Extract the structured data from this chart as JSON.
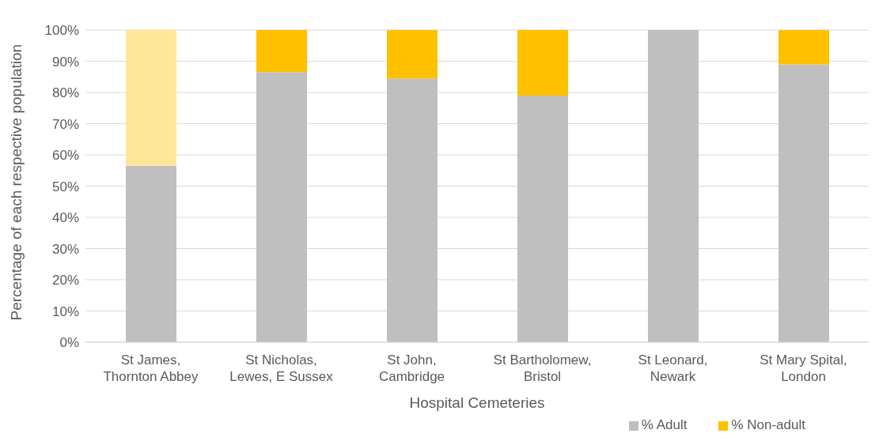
{
  "chart_data": {
    "type": "bar",
    "stacked": true,
    "xlabel": "Hospital Cemeteries",
    "ylabel": "Percentage of each respective population",
    "categories": [
      "St James, Thornton Abbey",
      "St Nicholas, Lewes, E Sussex",
      "St John, Cambridge",
      "St Bartholomew, Bristol",
      "St Leonard, Newark",
      "St Mary Spital, London"
    ],
    "series": [
      {
        "name": "% Adult",
        "color": "#bfbfbf",
        "values": [
          56.5,
          86.5,
          84.5,
          79,
          100,
          89
        ]
      },
      {
        "name": "% Non-adult",
        "color": "#ffc000",
        "colors": [
          "#ffe699",
          "#ffc000",
          "#ffc000",
          "#ffc000",
          "#ffc000",
          "#ffc000"
        ],
        "values": [
          43.5,
          13.5,
          15.5,
          21,
          0,
          11
        ]
      }
    ],
    "ylim": [
      0,
      100
    ],
    "yticks": [
      {
        "value": 0,
        "label": "0%"
      },
      {
        "value": 10,
        "label": "10%"
      },
      {
        "value": 20,
        "label": "20%"
      },
      {
        "value": 30,
        "label": "30%"
      },
      {
        "value": 40,
        "label": "40%"
      },
      {
        "value": 50,
        "label": "50%"
      },
      {
        "value": 60,
        "label": "60%"
      },
      {
        "value": 70,
        "label": "70%"
      },
      {
        "value": 80,
        "label": "80%"
      },
      {
        "value": 90,
        "label": "90%"
      },
      {
        "value": 100,
        "label": "100%"
      }
    ],
    "grid": "y",
    "legend": "bottom right"
  }
}
